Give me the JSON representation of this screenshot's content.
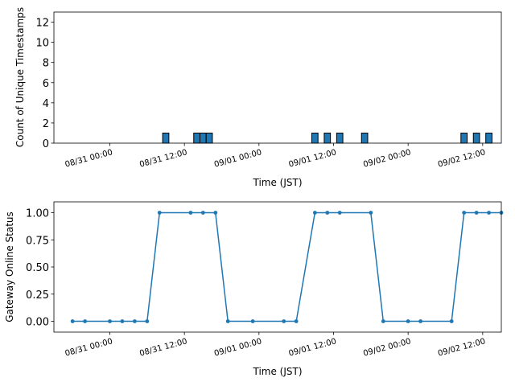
{
  "colors": {
    "bar_fill": "#1f77b4",
    "bar_edge": "#000000",
    "line": "#1f77b4",
    "axis": "#000000"
  },
  "chart_data": [
    {
      "type": "bar",
      "title": "",
      "xlabel": "Time (JST)",
      "ylabel": "Count of Unique Timestamps",
      "xlim": [
        "2024-08-30 15:00",
        "2024-09-02 15:00"
      ],
      "ylim": [
        0,
        13
      ],
      "yticks": [
        0,
        2,
        4,
        6,
        8,
        10,
        12
      ],
      "ytick_labels": [
        "0",
        "2",
        "4",
        "6",
        "8",
        "10",
        "12"
      ],
      "xticks": [
        "2024-08-31 00:00",
        "2024-08-31 12:00",
        "2024-09-01 00:00",
        "2024-09-01 12:00",
        "2024-09-02 00:00",
        "2024-09-02 12:00"
      ],
      "xtick_labels": [
        "08/31 00:00",
        "08/31 12:00",
        "09/01 00:00",
        "09/01 12:00",
        "09/02 00:00",
        "09/02 12:00"
      ],
      "bar_width_hours": 1,
      "x": [
        "2024-08-31 09:00",
        "2024-08-31 14:00",
        "2024-08-31 15:00",
        "2024-08-31 16:00",
        "2024-09-01 09:00",
        "2024-09-01 11:00",
        "2024-09-01 13:00",
        "2024-09-01 17:00",
        "2024-09-02 09:00",
        "2024-09-02 11:00",
        "2024-09-02 13:00"
      ],
      "values": [
        1,
        1,
        1,
        1,
        1,
        1,
        1,
        1,
        1,
        1,
        1
      ],
      "grid": false
    },
    {
      "type": "line",
      "title": "",
      "xlabel": "Time (JST)",
      "ylabel": "Gateway Online Status",
      "xlim": [
        "2024-08-30 15:00",
        "2024-09-02 15:00"
      ],
      "ylim": [
        -0.1,
        1.1
      ],
      "yticks": [
        0,
        0.25,
        0.5,
        0.75,
        1
      ],
      "ytick_labels": [
        "0.00",
        "0.25",
        "0.50",
        "0.75",
        "1.00"
      ],
      "xticks": [
        "2024-08-31 00:00",
        "2024-08-31 12:00",
        "2024-09-01 00:00",
        "2024-09-01 12:00",
        "2024-09-02 00:00",
        "2024-09-02 12:00"
      ],
      "xtick_labels": [
        "08/31 00:00",
        "08/31 12:00",
        "09/01 00:00",
        "09/01 12:00",
        "09/02 00:00",
        "09/02 12:00"
      ],
      "marker": "o",
      "x": [
        "2024-08-30 18:00",
        "2024-08-30 20:00",
        "2024-08-31 00:00",
        "2024-08-31 02:00",
        "2024-08-31 04:00",
        "2024-08-31 06:00",
        "2024-08-31 08:00",
        "2024-08-31 13:00",
        "2024-08-31 15:00",
        "2024-08-31 17:00",
        "2024-08-31 19:00",
        "2024-08-31 23:00",
        "2024-09-01 04:00",
        "2024-09-01 06:00",
        "2024-09-01 09:00",
        "2024-09-01 11:00",
        "2024-09-01 13:00",
        "2024-09-01 18:00",
        "2024-09-01 20:00",
        "2024-09-02 00:00",
        "2024-09-02 02:00",
        "2024-09-02 07:00",
        "2024-09-02 09:00",
        "2024-09-02 11:00",
        "2024-09-02 13:00",
        "2024-09-02 15:00"
      ],
      "values": [
        0,
        0,
        0,
        0,
        0,
        0,
        1,
        1,
        1,
        1,
        0,
        0,
        0,
        0,
        1,
        1,
        1,
        1,
        0,
        0,
        0,
        0,
        1,
        1,
        1,
        1
      ],
      "grid": false
    }
  ]
}
